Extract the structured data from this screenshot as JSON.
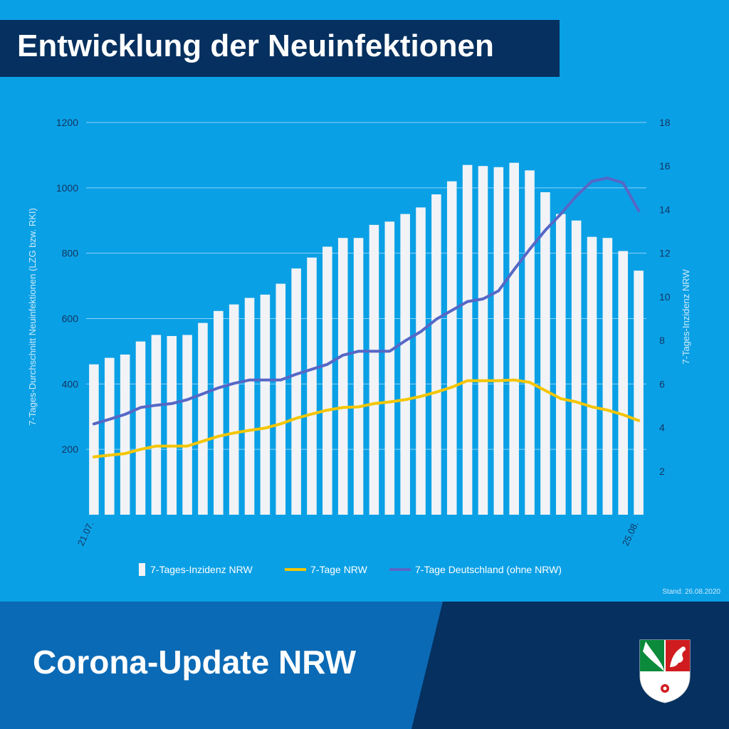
{
  "header": {
    "title": "Entwicklung der Neuinfektionen"
  },
  "footer": {
    "title": "Corona-Update NRW",
    "stand": "Stand: 26.08.2020"
  },
  "colors": {
    "bars": "#f1f3f6",
    "nrw_line": "#f5c500",
    "de_line": "#5667c6",
    "axis_text": "#13355f",
    "label_text": "#cfeaf8",
    "grid": "#8ed1f3"
  },
  "chart_data": {
    "type": "bar",
    "title": "Entwicklung der Neuinfektionen",
    "x": [
      "21.07.",
      "22.07.",
      "23.07.",
      "24.07.",
      "25.07.",
      "26.07.",
      "27.07.",
      "28.07.",
      "29.07.",
      "30.07.",
      "31.07.",
      "01.08.",
      "02.08.",
      "03.08.",
      "04.08.",
      "05.08.",
      "06.08.",
      "07.08.",
      "08.08.",
      "09.08.",
      "10.08.",
      "11.08.",
      "12.08.",
      "13.08.",
      "14.08.",
      "15.08.",
      "16.08.",
      "17.08.",
      "18.08.",
      "19.08.",
      "20.08.",
      "21.08.",
      "22.08.",
      "23.08.",
      "24.08.",
      "25.08."
    ],
    "x_tick_labels": [
      "21.07.",
      "25.08."
    ],
    "ylabel": "7-Tages-Durchschnitt Neuinfektionen (LZG bzw. RKI)",
    "ylabel_right": "7-Tages-Inzidenz NRW",
    "ylim": [
      0,
      1200
    ],
    "yticks": [
      200,
      400,
      600,
      800,
      1000,
      1200
    ],
    "ylim_right": [
      0,
      18
    ],
    "yticks_right": [
      2,
      4,
      6,
      8,
      10,
      12,
      14,
      16,
      18
    ],
    "grid": true,
    "legend": "bottom-center",
    "series": [
      {
        "name": "7-Tages-Inzidenz NRW",
        "type": "bar",
        "axis": "right",
        "values": [
          6.9,
          7.2,
          7.35,
          7.95,
          8.25,
          8.2,
          8.25,
          8.8,
          9.35,
          9.65,
          9.95,
          10.1,
          10.6,
          11.3,
          11.8,
          12.3,
          12.7,
          12.7,
          13.3,
          13.45,
          13.8,
          14.1,
          14.7,
          15.3,
          16.05,
          16.0,
          15.95,
          16.15,
          15.8,
          14.8,
          13.8,
          13.5,
          12.75,
          12.7,
          12.1,
          11.2
        ]
      },
      {
        "name": "7-Tage NRW",
        "type": "line",
        "axis": "left",
        "values": [
          177,
          182,
          187,
          200,
          210,
          210,
          210,
          225,
          240,
          250,
          258,
          265,
          278,
          295,
          308,
          320,
          328,
          330,
          340,
          345,
          352,
          362,
          375,
          390,
          410,
          410,
          410,
          412,
          405,
          380,
          355,
          345,
          330,
          320,
          306,
          288
        ]
      },
      {
        "name": "7-Tage Deutschland (ohne NRW)",
        "type": "line",
        "axis": "left",
        "values": [
          278,
          292,
          307,
          328,
          335,
          340,
          352,
          370,
          388,
          402,
          412,
          412,
          412,
          430,
          445,
          460,
          488,
          500,
          500,
          500,
          532,
          560,
          598,
          625,
          652,
          660,
          685,
          750,
          812,
          870,
          920,
          975,
          1020,
          1030,
          1015,
          930
        ]
      }
    ]
  }
}
